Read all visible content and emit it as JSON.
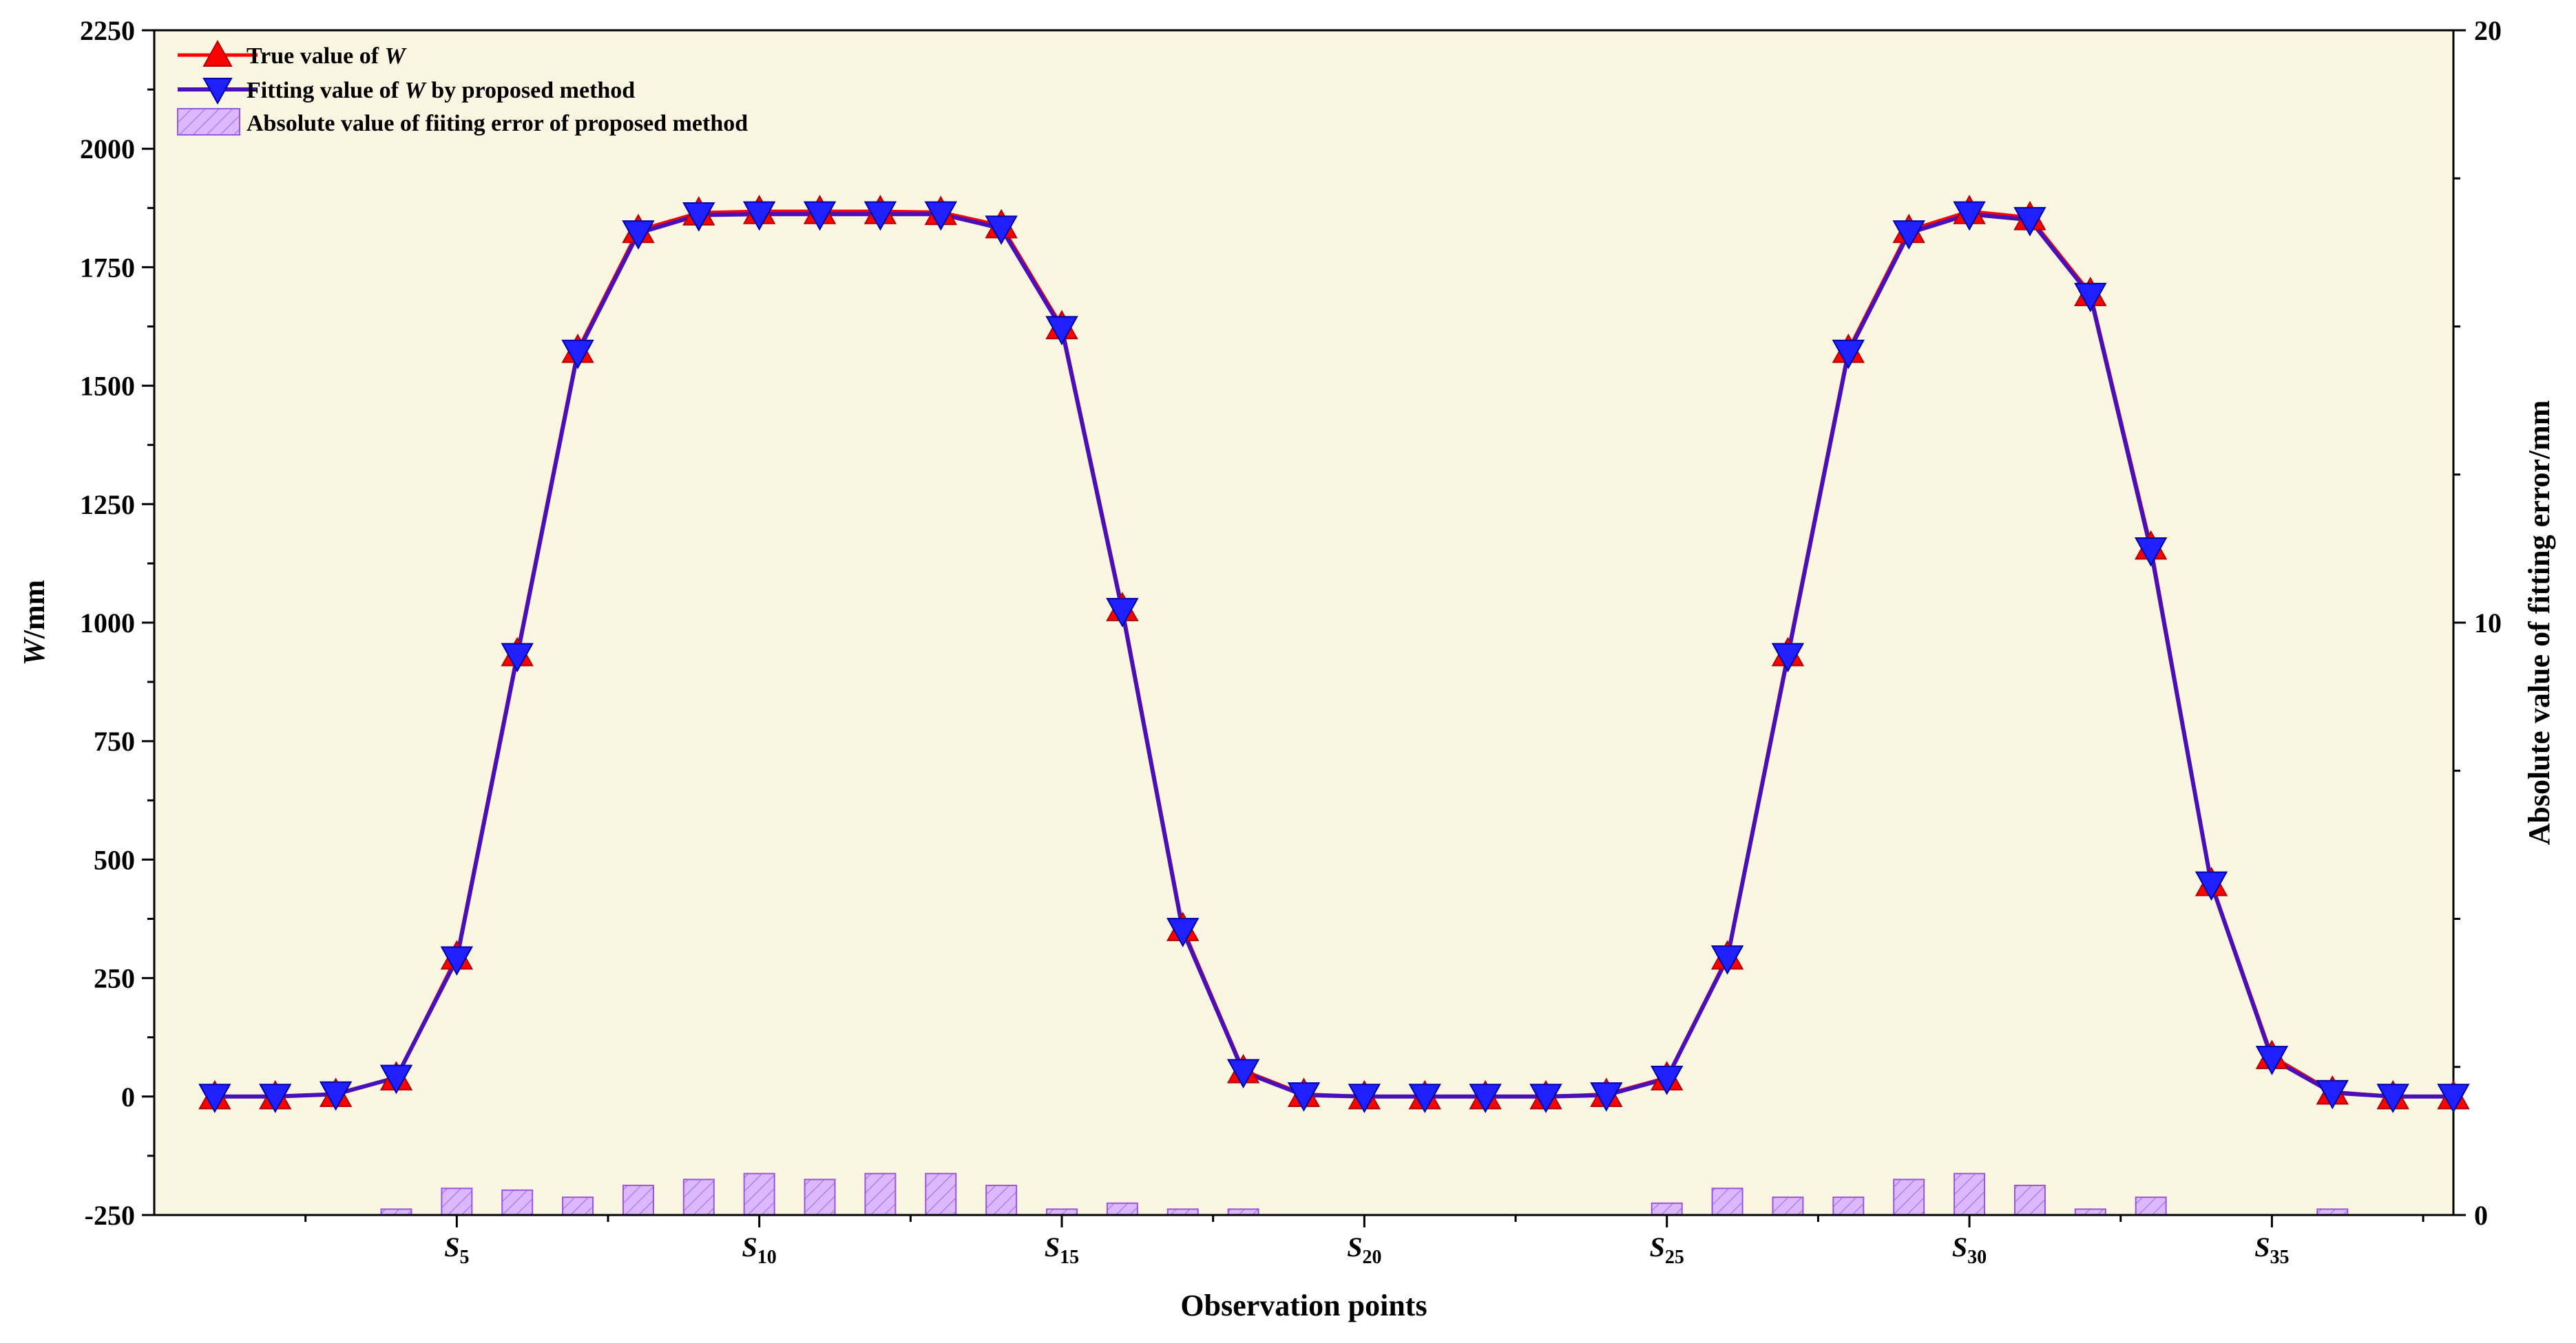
{
  "colors": {
    "plot_background": "#faf6e1",
    "true_marker": "#ff0000",
    "fit_marker": "#2020ff",
    "fit_line": "#4a10b8",
    "bar_fill": "#dcb8ff",
    "bar_edge": "#9a55e0"
  },
  "legend": {
    "true_label_prefix": "True value of ",
    "true_label_var": "W",
    "fit_label_prefix": "Fitting value of ",
    "fit_label_var": "W",
    "fit_label_suffix": " by proposed method",
    "error_label": "Absolute value of fiiting error of proposed method"
  },
  "chart_data": {
    "type": "line",
    "title": "",
    "xlabel": "Observation points",
    "ylabel_var": "W",
    "ylabel_unit": "/mm",
    "y2label": "Absolute value of fitting error/mm",
    "xlim": [
      0,
      38
    ],
    "ylim": [
      -250,
      2250
    ],
    "y2lim": [
      0,
      20
    ],
    "yticks": [
      -250,
      0,
      250,
      500,
      750,
      1000,
      1250,
      1500,
      1750,
      2000,
      2250
    ],
    "y2ticks": [
      0,
      10,
      20
    ],
    "xtick_labels": [
      {
        "x": 5,
        "letter": "S",
        "sub": "5"
      },
      {
        "x": 10,
        "letter": "S",
        "sub": "10"
      },
      {
        "x": 15,
        "letter": "S",
        "sub": "15"
      },
      {
        "x": 20,
        "letter": "S",
        "sub": "20"
      },
      {
        "x": 25,
        "letter": "S",
        "sub": "25"
      },
      {
        "x": 30,
        "letter": "S",
        "sub": "30"
      },
      {
        "x": 35,
        "letter": "S",
        "sub": "35"
      }
    ],
    "x": [
      1,
      2,
      3,
      4,
      5,
      6,
      7,
      8,
      9,
      10,
      11,
      12,
      13,
      14,
      15,
      16,
      17,
      18,
      19,
      20,
      21,
      22,
      23,
      24,
      25,
      26,
      27,
      28,
      29,
      30,
      31,
      32,
      33,
      34,
      35,
      36,
      37,
      38
    ],
    "series": [
      {
        "name": "True value of W",
        "values": [
          0,
          0,
          5,
          40,
          295,
          935,
          1575,
          1828,
          1865,
          1868,
          1868,
          1868,
          1866,
          1838,
          1625,
          1030,
          355,
          55,
          5,
          0,
          0,
          0,
          0,
          5,
          40,
          295,
          935,
          1575,
          1828,
          1868,
          1855,
          1695,
          1160,
          450,
          85,
          10,
          0,
          0
        ]
      },
      {
        "name": "Fitting value of W by proposed method",
        "values": [
          0,
          0,
          5,
          40,
          290,
          930,
          1570,
          1822,
          1860,
          1862,
          1862,
          1862,
          1862,
          1832,
          1620,
          1025,
          350,
          52,
          3,
          0,
          0,
          0,
          0,
          3,
          38,
          292,
          930,
          1570,
          1822,
          1862,
          1850,
          1690,
          1153,
          448,
          80,
          8,
          0,
          0
        ]
      },
      {
        "name": "Absolute value of fiiting error of proposed method",
        "axis": "right",
        "values": [
          0,
          0,
          0,
          0.1,
          0.45,
          0.42,
          0.3,
          0.5,
          0.6,
          0.7,
          0.6,
          0.7,
          0.7,
          0.5,
          0.1,
          0.2,
          0.1,
          0.1,
          0,
          0,
          0,
          0,
          0,
          0,
          0.2,
          0.45,
          0.3,
          0.3,
          0.6,
          0.7,
          0.5,
          0.1,
          0.3,
          0,
          0,
          0.1,
          0,
          0
        ]
      }
    ]
  }
}
